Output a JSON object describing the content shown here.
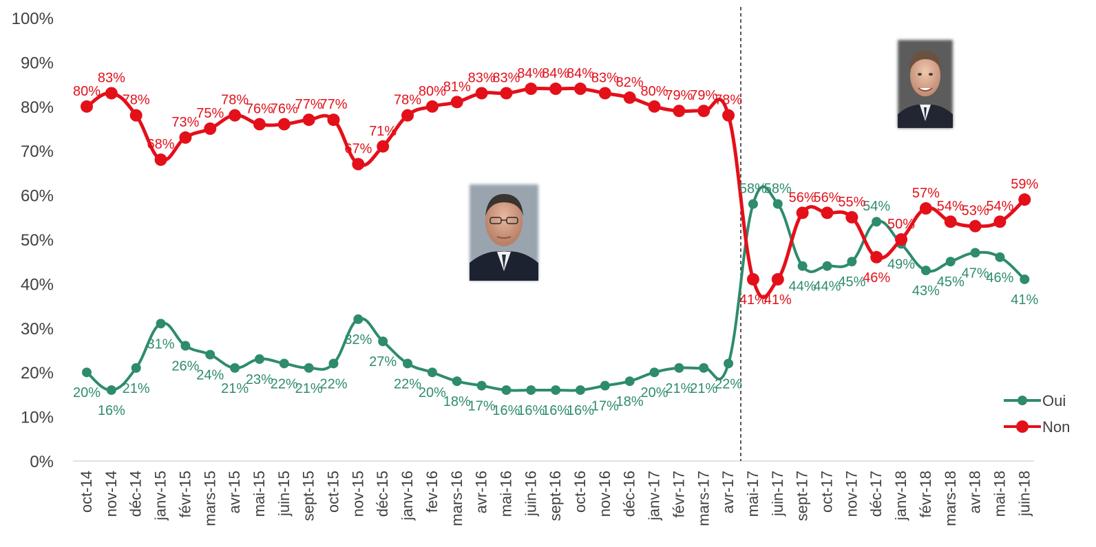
{
  "chart_data": {
    "type": "line",
    "categories": [
      "oct-14",
      "nov-14",
      "déc-14",
      "janv-15",
      "févr-15",
      "mars-15",
      "avr-15",
      "mai-15",
      "juin-15",
      "sept-15",
      "oct-15",
      "nov-15",
      "déc-15",
      "janv-16",
      "fev-16",
      "mars-16",
      "avr-16",
      "mai-16",
      "juin-16",
      "sept-16",
      "oct-16",
      "nov-16",
      "déc-16",
      "janv-17",
      "févr-17",
      "mars-17",
      "avr-17",
      "mai-17",
      "juin-17",
      "sept-17",
      "oct-17",
      "nov-17",
      "déc-17",
      "janv-18",
      "févr-18",
      "mars-18",
      "avr-18",
      "mai-18",
      "juin-18"
    ],
    "series": [
      {
        "name": "Oui",
        "color": "#2e8b6e",
        "values": [
          20,
          16,
          21,
          31,
          26,
          24,
          21,
          23,
          22,
          21,
          22,
          32,
          27,
          22,
          20,
          18,
          17,
          16,
          16,
          16,
          16,
          17,
          18,
          20,
          21,
          21,
          22,
          58,
          58,
          44,
          44,
          45,
          54,
          49,
          43,
          45,
          47,
          46,
          41
        ]
      },
      {
        "name": "Non",
        "color": "#e3101a",
        "values": [
          80,
          83,
          78,
          68,
          73,
          75,
          78,
          76,
          76,
          77,
          77,
          67,
          71,
          78,
          80,
          81,
          83,
          83,
          84,
          84,
          84,
          83,
          82,
          80,
          79,
          79,
          78,
          41,
          41,
          56,
          56,
          55,
          46,
          50,
          57,
          54,
          53,
          54,
          59
        ]
      }
    ],
    "y_ticks": [
      "0%",
      "10%",
      "20%",
      "30%",
      "40%",
      "50%",
      "60%",
      "70%",
      "80%",
      "90%",
      "100%"
    ],
    "ylim": [
      0,
      100
    ],
    "grid": false,
    "legend_position": "right",
    "divider_after_category": "avr-17"
  },
  "images": [
    {
      "icon": "hollande-portrait-photo"
    },
    {
      "icon": "macron-portrait-photo"
    }
  ]
}
